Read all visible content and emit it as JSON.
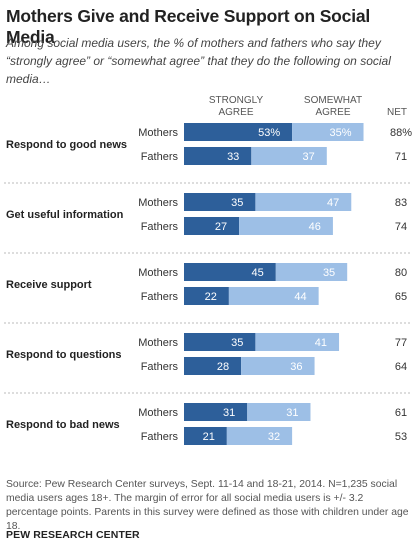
{
  "title": "Mothers Give and Receive Support on Social Media",
  "subtitle": "Among social media users, the % of mothers and fathers who say they “strongly agree” or “somewhat agree” that they do the following on social media…",
  "chart_data": {
    "type": "bar",
    "stacked": true,
    "orientation": "horizontal",
    "column_headers": {
      "strongly": "STRONGLY AGREE",
      "somewhat": "SOMEWHAT AGREE",
      "net": "NET"
    },
    "series": [
      {
        "name": "Strongly agree",
        "color": "#2d5f9a"
      },
      {
        "name": "Somewhat agree",
        "color": "#9dbfe6"
      }
    ],
    "groups": [
      {
        "label": "Respond to good news",
        "rows": [
          {
            "label": "Mothers",
            "strongly": 53,
            "somewhat": 35,
            "net": 88,
            "strongly_label": "53%",
            "somewhat_label": "35%",
            "net_label": "88%"
          },
          {
            "label": "Fathers",
            "strongly": 33,
            "somewhat": 37,
            "net": 71,
            "strongly_label": "33",
            "somewhat_label": "37",
            "net_label": "71"
          }
        ]
      },
      {
        "label": "Get useful information",
        "rows": [
          {
            "label": "Mothers",
            "strongly": 35,
            "somewhat": 47,
            "net": 83,
            "strongly_label": "35",
            "somewhat_label": "47",
            "net_label": "83"
          },
          {
            "label": "Fathers",
            "strongly": 27,
            "somewhat": 46,
            "net": 74,
            "strongly_label": "27",
            "somewhat_label": "46",
            "net_label": "74"
          }
        ]
      },
      {
        "label": "Receive support",
        "rows": [
          {
            "label": "Mothers",
            "strongly": 45,
            "somewhat": 35,
            "net": 80,
            "strongly_label": "45",
            "somewhat_label": "35",
            "net_label": "80"
          },
          {
            "label": "Fathers",
            "strongly": 22,
            "somewhat": 44,
            "net": 65,
            "strongly_label": "22",
            "somewhat_label": "44",
            "net_label": "65"
          }
        ]
      },
      {
        "label": "Respond to questions",
        "rows": [
          {
            "label": "Mothers",
            "strongly": 35,
            "somewhat": 41,
            "net": 77,
            "strongly_label": "35",
            "somewhat_label": "41",
            "net_label": "77"
          },
          {
            "label": "Fathers",
            "strongly": 28,
            "somewhat": 36,
            "net": 64,
            "strongly_label": "28",
            "somewhat_label": "36",
            "net_label": "64"
          }
        ]
      },
      {
        "label": "Respond to bad news",
        "rows": [
          {
            "label": "Mothers",
            "strongly": 31,
            "somewhat": 31,
            "net": 61,
            "strongly_label": "31",
            "somewhat_label": "31",
            "net_label": "61"
          },
          {
            "label": "Fathers",
            "strongly": 21,
            "somewhat": 32,
            "net": 53,
            "strongly_label": "21",
            "somewhat_label": "32",
            "net_label": "53"
          }
        ]
      }
    ]
  },
  "source": "Source: Pew Research Center surveys, Sept. 11-14 and 18-21, 2014. N=1,235 social media users ages 18+. The margin of error for all social media users is +/- 3.2 percentage points. Parents in this survey were defined as those with children under age 18.",
  "brand": "PEW RESEARCH CENTER"
}
